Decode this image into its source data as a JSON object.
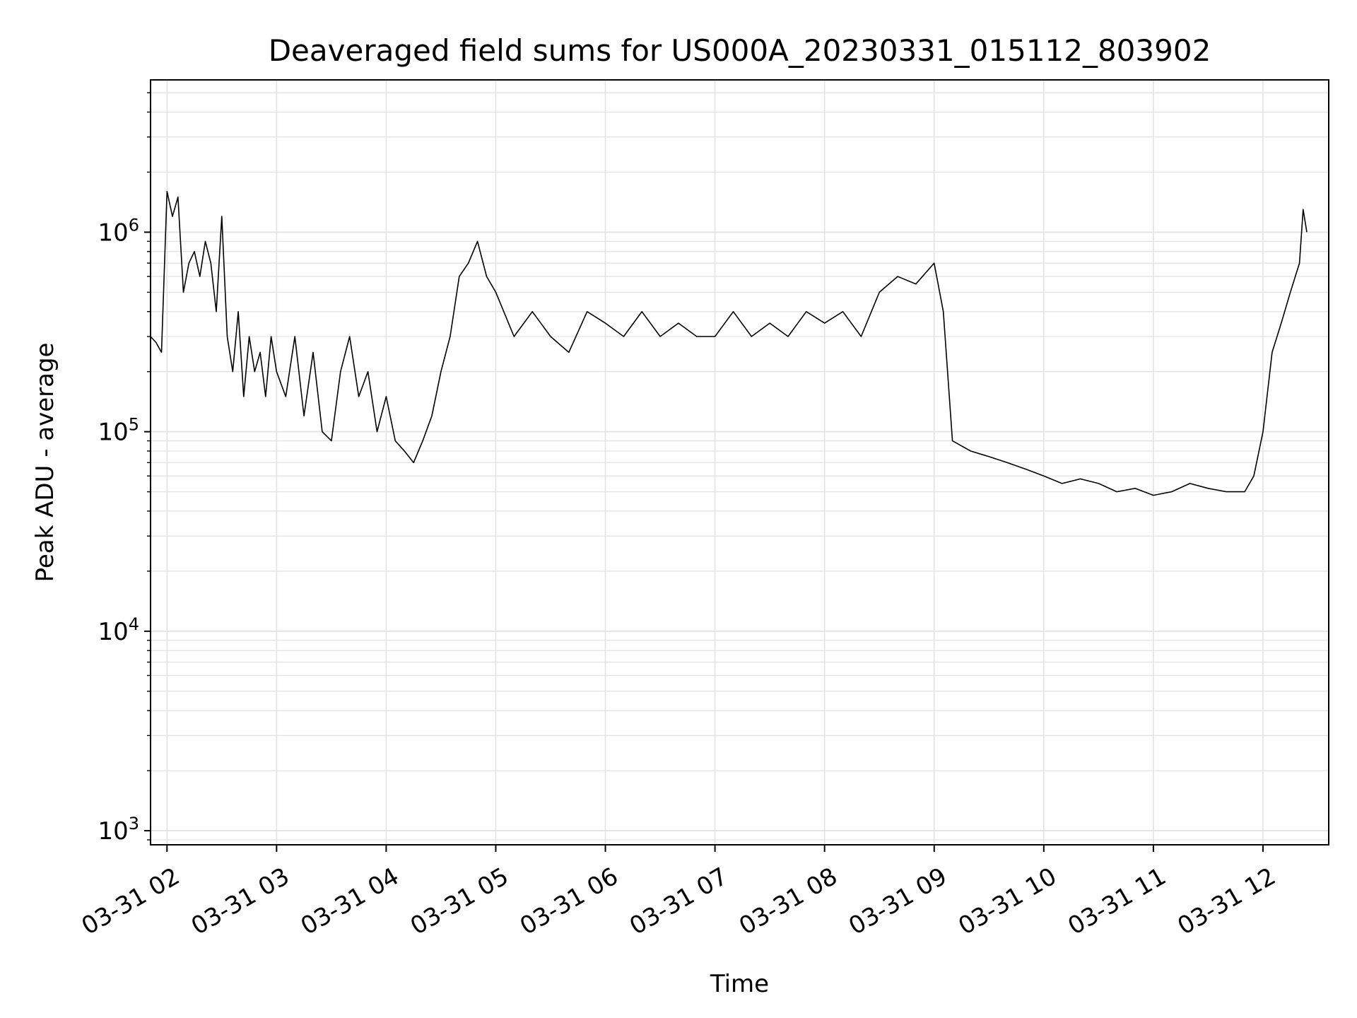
{
  "chart_data": {
    "type": "line",
    "title": "Deaveraged field sums for US000A_20230331_015112_803902",
    "xlabel": "Time",
    "ylabel": "Peak ADU - average",
    "yscale": "log",
    "ylim": [
      850,
      5800000
    ],
    "xlim": [
      "2023-03-31 01:51",
      "2023-03-31 12:36"
    ],
    "x_ticks": [
      {
        "t": "2023-03-31 02:00",
        "label": "03-31 02"
      },
      {
        "t": "2023-03-31 03:00",
        "label": "03-31 03"
      },
      {
        "t": "2023-03-31 04:00",
        "label": "03-31 04"
      },
      {
        "t": "2023-03-31 05:00",
        "label": "03-31 05"
      },
      {
        "t": "2023-03-31 06:00",
        "label": "03-31 06"
      },
      {
        "t": "2023-03-31 07:00",
        "label": "03-31 07"
      },
      {
        "t": "2023-03-31 08:00",
        "label": "03-31 08"
      },
      {
        "t": "2023-03-31 09:00",
        "label": "03-31 09"
      },
      {
        "t": "2023-03-31 10:00",
        "label": "03-31 10"
      },
      {
        "t": "2023-03-31 11:00",
        "label": "03-31 11"
      },
      {
        "t": "2023-03-31 12:00",
        "label": "03-31 12"
      }
    ],
    "y_ticks": [
      {
        "value": 1000,
        "base": "10",
        "exp": "3"
      },
      {
        "value": 10000,
        "base": "10",
        "exp": "4"
      },
      {
        "value": 100000,
        "base": "10",
        "exp": "5"
      },
      {
        "value": 1000000,
        "base": "10",
        "exp": "6"
      }
    ],
    "grid": true,
    "line_color": "#000000",
    "grid_color": "#e3e3e3",
    "series": [
      {
        "x": [
          "2023-03-31 01:51",
          "2023-03-31 01:54",
          "2023-03-31 01:57",
          "2023-03-31 02:00",
          "2023-03-31 02:03",
          "2023-03-31 02:06",
          "2023-03-31 02:09",
          "2023-03-31 02:12",
          "2023-03-31 02:15",
          "2023-03-31 02:18",
          "2023-03-31 02:21",
          "2023-03-31 02:24",
          "2023-03-31 02:27",
          "2023-03-31 02:30",
          "2023-03-31 02:33",
          "2023-03-31 02:36",
          "2023-03-31 02:39",
          "2023-03-31 02:42",
          "2023-03-31 02:45",
          "2023-03-31 02:48",
          "2023-03-31 02:51",
          "2023-03-31 02:54",
          "2023-03-31 02:57",
          "2023-03-31 03:00",
          "2023-03-31 03:05",
          "2023-03-31 03:10",
          "2023-03-31 03:15",
          "2023-03-31 03:20",
          "2023-03-31 03:25",
          "2023-03-31 03:30",
          "2023-03-31 03:35",
          "2023-03-31 03:40",
          "2023-03-31 03:45",
          "2023-03-31 03:50",
          "2023-03-31 03:55",
          "2023-03-31 04:00",
          "2023-03-31 04:05",
          "2023-03-31 04:10",
          "2023-03-31 04:15",
          "2023-03-31 04:20",
          "2023-03-31 04:25",
          "2023-03-31 04:30",
          "2023-03-31 04:35",
          "2023-03-31 04:40",
          "2023-03-31 04:45",
          "2023-03-31 04:50",
          "2023-03-31 04:55",
          "2023-03-31 05:00",
          "2023-03-31 05:10",
          "2023-03-31 05:20",
          "2023-03-31 05:30",
          "2023-03-31 05:40",
          "2023-03-31 05:50",
          "2023-03-31 06:00",
          "2023-03-31 06:10",
          "2023-03-31 06:20",
          "2023-03-31 06:30",
          "2023-03-31 06:40",
          "2023-03-31 06:50",
          "2023-03-31 07:00",
          "2023-03-31 07:10",
          "2023-03-31 07:20",
          "2023-03-31 07:30",
          "2023-03-31 07:40",
          "2023-03-31 07:50",
          "2023-03-31 08:00",
          "2023-03-31 08:10",
          "2023-03-31 08:20",
          "2023-03-31 08:30",
          "2023-03-31 08:40",
          "2023-03-31 08:50",
          "2023-03-31 09:00",
          "2023-03-31 09:05",
          "2023-03-31 09:10",
          "2023-03-31 09:20",
          "2023-03-31 09:30",
          "2023-03-31 09:40",
          "2023-03-31 09:50",
          "2023-03-31 10:00",
          "2023-03-31 10:10",
          "2023-03-31 10:20",
          "2023-03-31 10:30",
          "2023-03-31 10:40",
          "2023-03-31 10:50",
          "2023-03-31 11:00",
          "2023-03-31 11:10",
          "2023-03-31 11:20",
          "2023-03-31 11:30",
          "2023-03-31 11:40",
          "2023-03-31 11:50",
          "2023-03-31 11:55",
          "2023-03-31 12:00",
          "2023-03-31 12:05",
          "2023-03-31 12:10",
          "2023-03-31 12:15",
          "2023-03-31 12:20",
          "2023-03-31 12:22",
          "2023-03-31 12:24"
        ],
        "y": [
          300000,
          280000,
          250000,
          1600000,
          1200000,
          1500000,
          500000,
          700000,
          800000,
          600000,
          900000,
          700000,
          400000,
          1200000,
          300000,
          200000,
          400000,
          150000,
          300000,
          200000,
          250000,
          150000,
          300000,
          200000,
          150000,
          300000,
          120000,
          250000,
          100000,
          90000,
          200000,
          300000,
          150000,
          200000,
          100000,
          150000,
          90000,
          80000,
          70000,
          90000,
          120000,
          200000,
          300000,
          600000,
          700000,
          900000,
          600000,
          500000,
          300000,
          400000,
          300000,
          250000,
          400000,
          350000,
          300000,
          400000,
          300000,
          350000,
          300000,
          300000,
          400000,
          300000,
          350000,
          300000,
          400000,
          350000,
          400000,
          300000,
          500000,
          600000,
          550000,
          700000,
          400000,
          90000,
          80000,
          75000,
          70000,
          65000,
          60000,
          55000,
          58000,
          55000,
          50000,
          52000,
          48000,
          50000,
          55000,
          52000,
          50000,
          50000,
          60000,
          100000,
          250000,
          350000,
          500000,
          700000,
          1300000,
          1000000
        ]
      }
    ]
  }
}
